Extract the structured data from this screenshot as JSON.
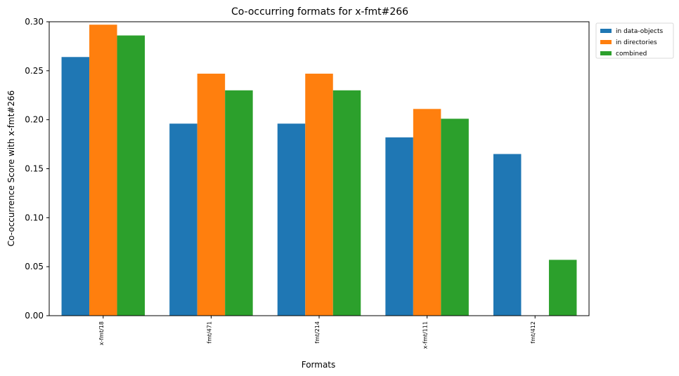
{
  "chart_data": {
    "type": "bar",
    "title": "Co-occurring formats for x-fmt#266",
    "xlabel": "Formats",
    "ylabel": "Co-occurrence Score with x-fmt#266",
    "categories": [
      "x-fmt/18",
      "fmt/471",
      "fmt/214",
      "x-fmt/111",
      "fmt/412"
    ],
    "series": [
      {
        "name": "in data-objects",
        "color": "#1f77b4",
        "values": [
          0.264,
          0.196,
          0.196,
          0.182,
          0.165
        ]
      },
      {
        "name": "in directories",
        "color": "#ff7f0e",
        "values": [
          0.297,
          0.247,
          0.247,
          0.211,
          0.0
        ]
      },
      {
        "name": "combined",
        "color": "#2ca02c",
        "values": [
          0.286,
          0.23,
          0.23,
          0.201,
          0.057
        ]
      }
    ],
    "ylim": [
      0,
      0.3
    ],
    "yticks": [
      0.0,
      0.05,
      0.1,
      0.15,
      0.2,
      0.25,
      0.3
    ],
    "ytick_labels": [
      "0.00",
      "0.05",
      "0.10",
      "0.15",
      "0.20",
      "0.25",
      "0.30"
    ],
    "grid": false,
    "legend_position": "outside-top-right"
  }
}
